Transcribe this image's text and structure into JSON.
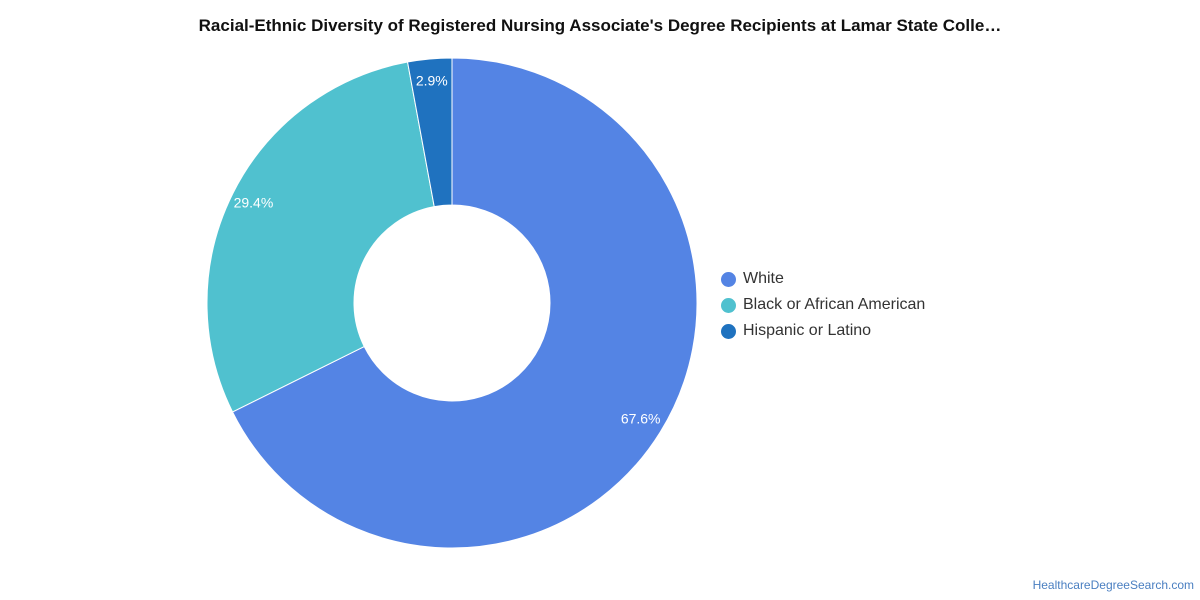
{
  "chart_data": {
    "type": "pie",
    "title": "Racial-Ethnic Diversity of Registered Nursing Associate's Degree Recipients at Lamar State Colle…",
    "donut": true,
    "slices": [
      {
        "label": "White",
        "value": 67.6,
        "value_label": "67.6%",
        "color": "#5484e4"
      },
      {
        "label": "Black or African American",
        "value": 29.4,
        "value_label": "29.4%",
        "color": "#50c1cf"
      },
      {
        "label": "Hispanic or Latino",
        "value": 2.9,
        "value_label": "2.9%",
        "color": "#1f72bf"
      }
    ],
    "legend_position": "right",
    "start_angle": "top, clockwise"
  },
  "source_text": "HealthcareDegreeSearch.com"
}
